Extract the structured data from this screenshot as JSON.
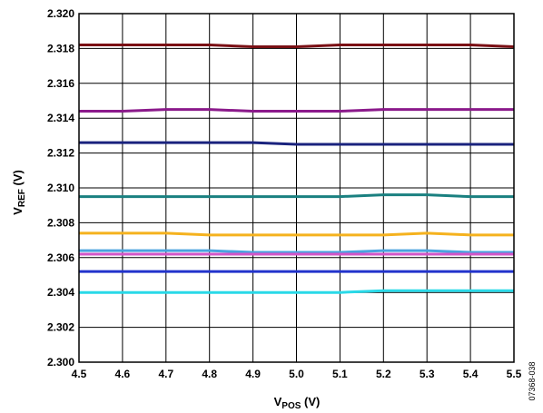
{
  "chart_data": {
    "type": "line",
    "x": [
      4.5,
      4.6,
      4.7,
      4.8,
      4.9,
      5.0,
      5.1,
      5.2,
      5.3,
      5.4,
      5.5
    ],
    "xlim": [
      4.5,
      5.5
    ],
    "ylim": [
      2.3,
      2.32
    ],
    "x_ticks": [
      "4.5",
      "4.6",
      "4.7",
      "4.8",
      "4.9",
      "5.0",
      "5.1",
      "5.2",
      "5.3",
      "5.4",
      "5.5"
    ],
    "y_ticks": [
      "2.300",
      "2.302",
      "2.304",
      "2.306",
      "2.308",
      "2.310",
      "2.312",
      "2.314",
      "2.316",
      "2.318",
      "2.320"
    ],
    "xlabel": {
      "main": "V",
      "sub": "POS",
      "unit": " (V)"
    },
    "ylabel": {
      "main": "V",
      "sub": "REF",
      "unit": " (V)"
    },
    "grid": true,
    "legend": "none",
    "figure_id": "07368-038",
    "series": [
      {
        "color": "#7a0f14",
        "values": [
          2.3182,
          2.3182,
          2.3182,
          2.3182,
          2.3181,
          2.3181,
          2.3182,
          2.3182,
          2.3182,
          2.3182,
          2.3181
        ]
      },
      {
        "color": "#8b1a8b",
        "values": [
          2.3144,
          2.3144,
          2.3145,
          2.3145,
          2.3144,
          2.3144,
          2.3144,
          2.3145,
          2.3145,
          2.3145,
          2.3145
        ]
      },
      {
        "color": "#1a237e",
        "values": [
          2.3126,
          2.3126,
          2.3126,
          2.3126,
          2.3126,
          2.3125,
          2.3125,
          2.3125,
          2.3125,
          2.3125,
          2.3125
        ]
      },
      {
        "color": "#1a8080",
        "values": [
          2.3095,
          2.3095,
          2.3095,
          2.3095,
          2.3095,
          2.3095,
          2.3095,
          2.3096,
          2.3096,
          2.3095,
          2.3095
        ]
      },
      {
        "color": "#f5b21e",
        "values": [
          2.3074,
          2.3074,
          2.3074,
          2.3073,
          2.3073,
          2.3073,
          2.3073,
          2.3073,
          2.3074,
          2.3073,
          2.3073
        ]
      },
      {
        "color": "#4aa3df",
        "values": [
          2.3064,
          2.3064,
          2.3064,
          2.3064,
          2.3063,
          2.3063,
          2.3063,
          2.3064,
          2.3064,
          2.3063,
          2.3063
        ]
      },
      {
        "color": "#d255c8",
        "values": [
          2.3062,
          2.3062,
          2.3062,
          2.3062,
          2.3062,
          2.3062,
          2.3062,
          2.3062,
          2.3062,
          2.3062,
          2.3062
        ]
      },
      {
        "color": "#2233cc",
        "values": [
          2.3052,
          2.3052,
          2.3052,
          2.3052,
          2.3052,
          2.3052,
          2.3052,
          2.3052,
          2.3052,
          2.3052,
          2.3052
        ]
      },
      {
        "color": "#29d9e8",
        "values": [
          2.304,
          2.304,
          2.304,
          2.304,
          2.304,
          2.304,
          2.304,
          2.3041,
          2.3041,
          2.3041,
          2.3041
        ]
      }
    ]
  }
}
